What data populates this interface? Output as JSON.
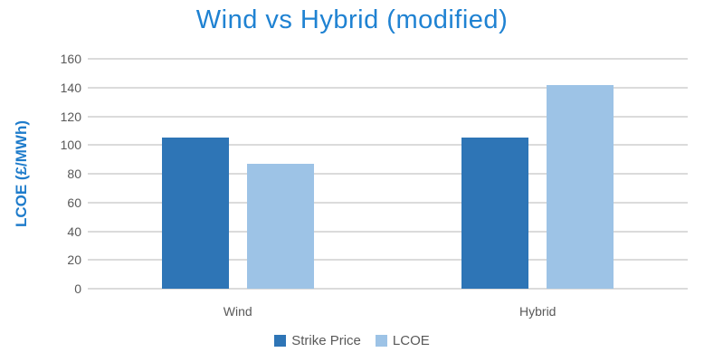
{
  "chart_data": {
    "type": "bar",
    "title": "Wind vs Hybrid (modified)",
    "xlabel": "",
    "ylabel": "LCOE (£/MWh)",
    "categories": [
      "Wind",
      "Hybrid"
    ],
    "series": [
      {
        "name": "Strike Price",
        "color": "#2E75B6",
        "values": [
          105,
          105
        ]
      },
      {
        "name": "LCOE",
        "color": "#9DC3E6",
        "values": [
          87,
          142
        ]
      }
    ],
    "ylim": [
      0,
      160
    ],
    "ytick_step": 20,
    "grid": true,
    "legend_position": "bottom"
  },
  "colors": {
    "title": "#1F82D2",
    "axis_title": "#1F7CCB",
    "tick_label": "#595959",
    "category_label": "#595959",
    "legend_label": "#595959",
    "gridline": "#DBDBDB",
    "background": "#FFFFFF"
  }
}
